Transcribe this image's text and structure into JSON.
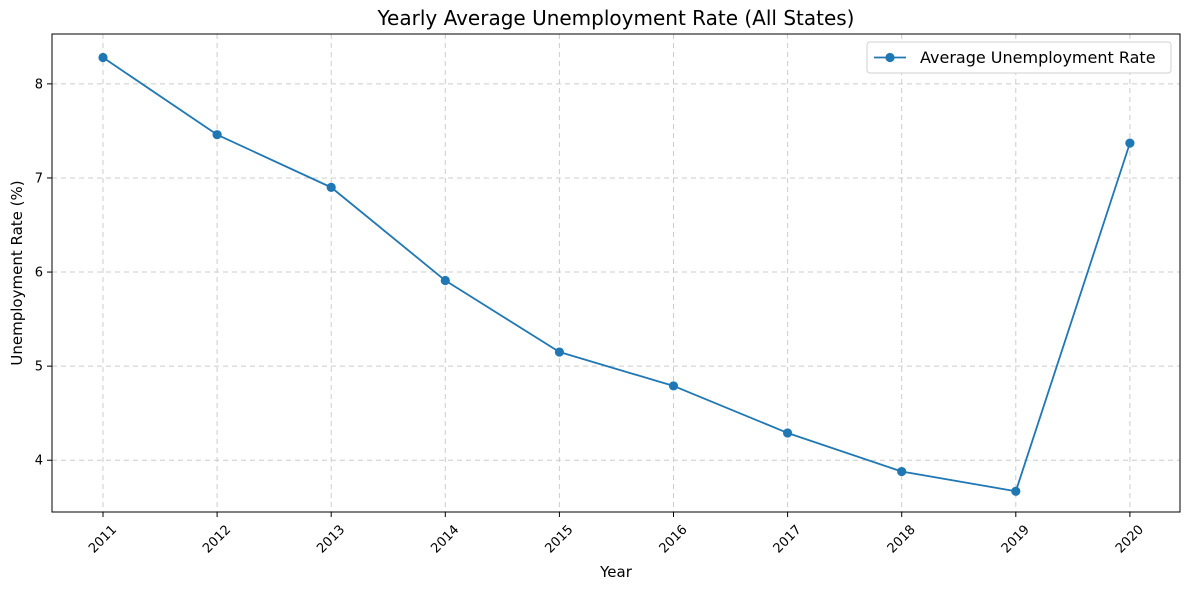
{
  "chart_data": {
    "type": "line",
    "title": "Yearly Average Unemployment Rate (All States)",
    "xlabel": "Year",
    "ylabel": "Unemployment Rate (%)",
    "x": [
      "2011",
      "2012",
      "2013",
      "2014",
      "2015",
      "2016",
      "2017",
      "2018",
      "2019",
      "2020"
    ],
    "series": [
      {
        "name": "Average Unemployment Rate",
        "values": [
          8.28,
          7.46,
          6.9,
          5.91,
          5.15,
          4.79,
          4.29,
          3.88,
          3.67,
          7.37
        ],
        "color": "#1f77b4",
        "marker": "circle"
      }
    ],
    "ylim": [
      3.45,
      8.53
    ],
    "yticks": [
      "4",
      "5",
      "6",
      "7",
      "8"
    ],
    "x_tick_rotation": 45,
    "grid": true,
    "grid_style": "dashed",
    "legend_position": "top-right"
  }
}
